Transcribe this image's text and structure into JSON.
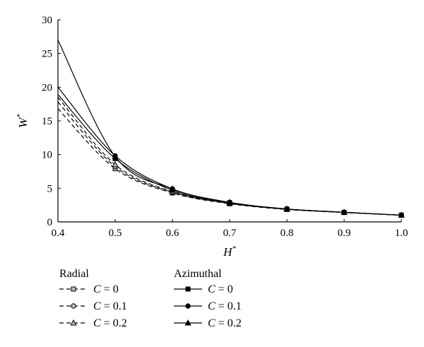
{
  "chart_data": {
    "type": "line",
    "xlabel": "H",
    "xlabel_superscript": "*",
    "ylabel": "W",
    "ylabel_superscript": "*",
    "xlim": [
      0.4,
      1.0
    ],
    "ylim": [
      0,
      30
    ],
    "x_ticks": [
      "0.4",
      "0.5",
      "0.6",
      "0.7",
      "0.8",
      "0.9",
      "1.0"
    ],
    "y_ticks": [
      "0",
      "5",
      "10",
      "15",
      "20",
      "25",
      "30"
    ],
    "grid": false,
    "legend_position": "bottom-left",
    "legend_groups": [
      {
        "heading": "Radial",
        "line_style": "dashed"
      },
      {
        "heading": "Azimuthal",
        "line_style": "solid"
      }
    ],
    "x": [
      0.4,
      0.5,
      0.6,
      0.7,
      0.8,
      0.9,
      1.0
    ],
    "series": [
      {
        "group": "Radial",
        "legend_prefix": "C",
        "legend_value": "= 0",
        "marker": "square",
        "dashed": true,
        "values": [
          16.8,
          7.9,
          4.3,
          2.7,
          1.85,
          1.4,
          1.0
        ]
      },
      {
        "group": "Radial",
        "legend_prefix": "C",
        "legend_value": "= 0.1",
        "marker": "circle",
        "dashed": true,
        "values": [
          17.8,
          8.2,
          4.4,
          2.75,
          1.88,
          1.41,
          1.0
        ]
      },
      {
        "group": "Radial",
        "legend_prefix": "C",
        "legend_value": "= 0.2",
        "marker": "triangle",
        "dashed": true,
        "values": [
          18.5,
          8.5,
          4.5,
          2.8,
          1.9,
          1.42,
          1.0
        ]
      },
      {
        "group": "Azimuthal",
        "legend_prefix": "C",
        "legend_value": "= 0",
        "marker": "square",
        "dashed": false,
        "values": [
          18.9,
          9.4,
          4.7,
          2.85,
          1.9,
          1.42,
          1.0
        ]
      },
      {
        "group": "Azimuthal",
        "legend_prefix": "C",
        "legend_value": "= 0.1",
        "marker": "circle",
        "dashed": false,
        "values": [
          20.0,
          9.8,
          4.9,
          2.9,
          1.92,
          1.43,
          1.0
        ]
      },
      {
        "group": "Azimuthal",
        "legend_prefix": "C",
        "legend_value": "= 0.2",
        "marker": "triangle",
        "dashed": false,
        "values": [
          27.0,
          9.7,
          4.9,
          2.9,
          1.92,
          1.43,
          1.0
        ]
      }
    ]
  }
}
